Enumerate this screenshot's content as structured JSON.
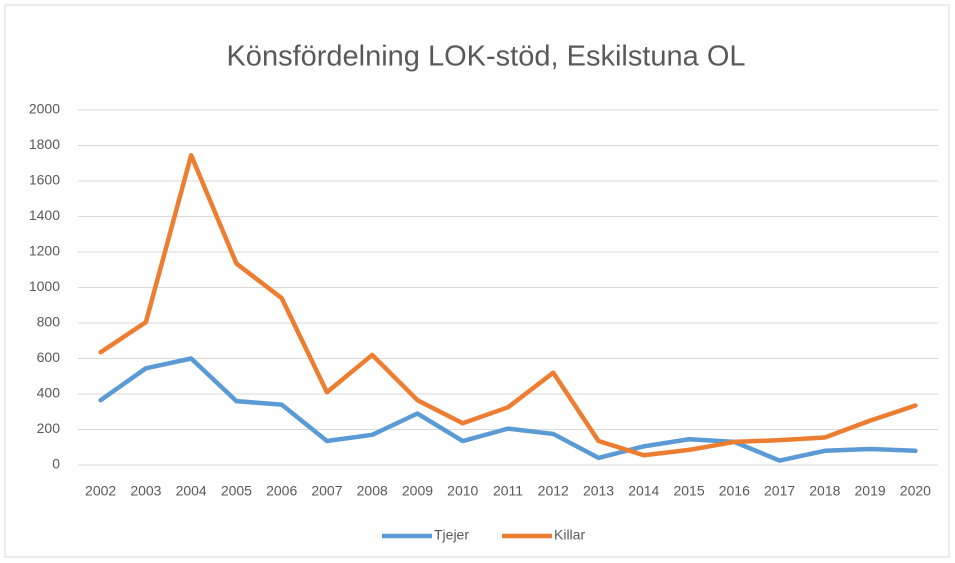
{
  "chart_data": {
    "type": "line",
    "title": "Könsfördelning LOK-stöd, Eskilstuna OL",
    "categories": [
      "2002",
      "2003",
      "2004",
      "2005",
      "2006",
      "2007",
      "2008",
      "2009",
      "2010",
      "2011",
      "2012",
      "2013",
      "2014",
      "2015",
      "2016",
      "2017",
      "2018",
      "2019",
      "2020"
    ],
    "series": [
      {
        "name": "Tjejer",
        "color": "#5b9bd5",
        "values": [
          365,
          545,
          600,
          360,
          340,
          135,
          170,
          290,
          135,
          205,
          175,
          40,
          105,
          145,
          130,
          25,
          80,
          90,
          80
        ]
      },
      {
        "name": "Killar",
        "color": "#ed7d31",
        "values": [
          635,
          805,
          1745,
          1135,
          940,
          410,
          620,
          365,
          235,
          325,
          520,
          135,
          55,
          85,
          130,
          140,
          155,
          250,
          335
        ]
      }
    ],
    "ylim": [
      0,
      2000
    ],
    "yticks": [
      0,
      200,
      400,
      600,
      800,
      1000,
      1200,
      1400,
      1600,
      1800,
      2000
    ],
    "grid": true,
    "legend": "bottom"
  }
}
